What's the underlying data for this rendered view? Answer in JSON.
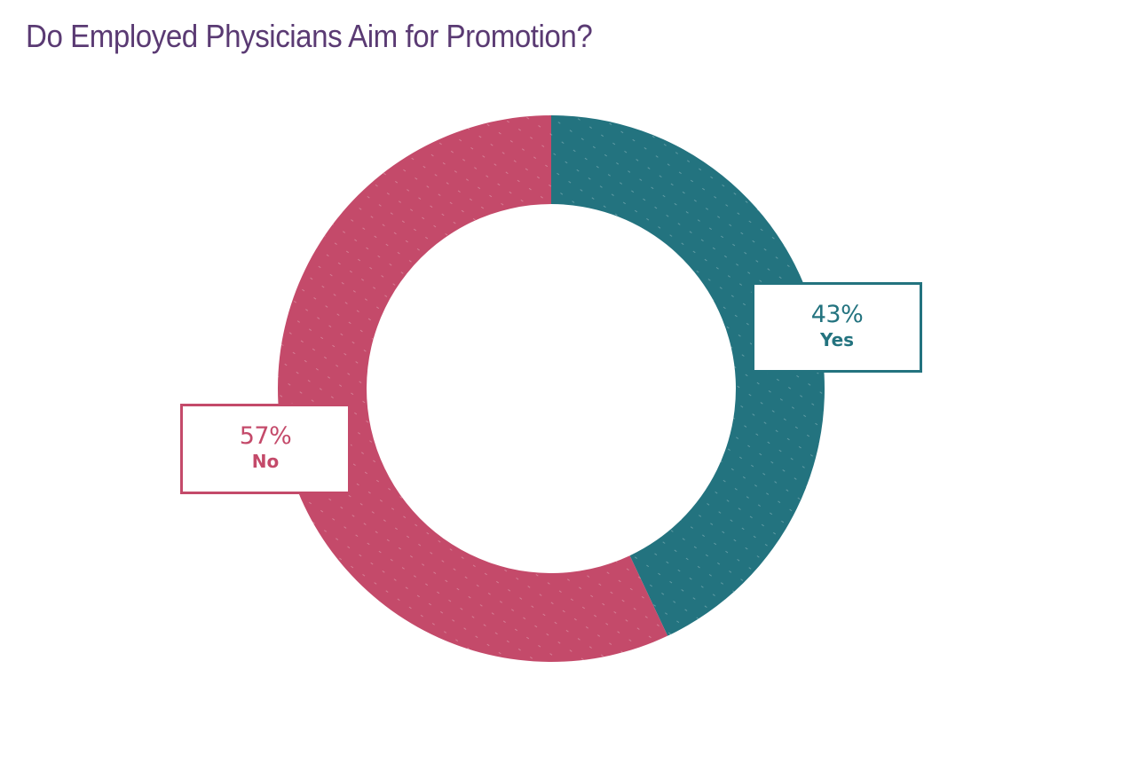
{
  "title": "Do Employed Physicians Aim for Promotion?",
  "colors": {
    "title": "#5a3a73",
    "yes": "#23737f",
    "no": "#c44a6a"
  },
  "chart_data": {
    "type": "pie",
    "donut": true,
    "title": "Do Employed Physicians Aim for Promotion?",
    "slices": [
      {
        "label": "Yes",
        "value": 43,
        "value_label": "43%",
        "color": "#23737f"
      },
      {
        "label": "No",
        "value": 57,
        "value_label": "57%",
        "color": "#c44a6a"
      }
    ],
    "legend": "none"
  }
}
